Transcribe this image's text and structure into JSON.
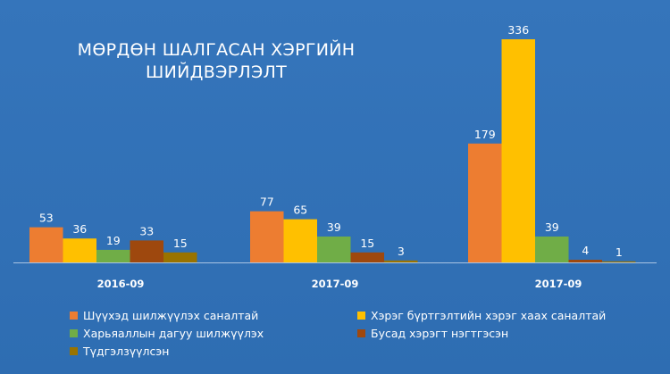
{
  "chart_data": {
    "type": "bar",
    "title_lines": [
      "МӨРДӨН ШАЛГАСАН ХЭРГИЙН",
      "ШИЙДВЭРЛЭЛТ"
    ],
    "categories": [
      "2016-09",
      "2017-09",
      "2017-09"
    ],
    "series": [
      {
        "name": "Шүүхэд шилжүүлэх саналтай",
        "color": "#ed7d31",
        "values": [
          53,
          77,
          179
        ]
      },
      {
        "name": "Хэрэг бүртгэлтийн хэрэг хаах саналтай",
        "color": "#ffc000",
        "values": [
          36,
          65,
          336
        ]
      },
      {
        "name": "Харьяаллын дагуу шилжүүлэх",
        "color": "#70ad47",
        "values": [
          19,
          39,
          39
        ]
      },
      {
        "name": "Бусад хэрэгт нэгтгэсэн",
        "color": "#9e480e",
        "values": [
          33,
          15,
          4
        ]
      },
      {
        "name": "Түдгэлзүүлсэн",
        "color": "#997300",
        "values": [
          15,
          3,
          1
        ]
      }
    ],
    "legend_position": "bottom",
    "grid": false,
    "data_labels": true
  }
}
